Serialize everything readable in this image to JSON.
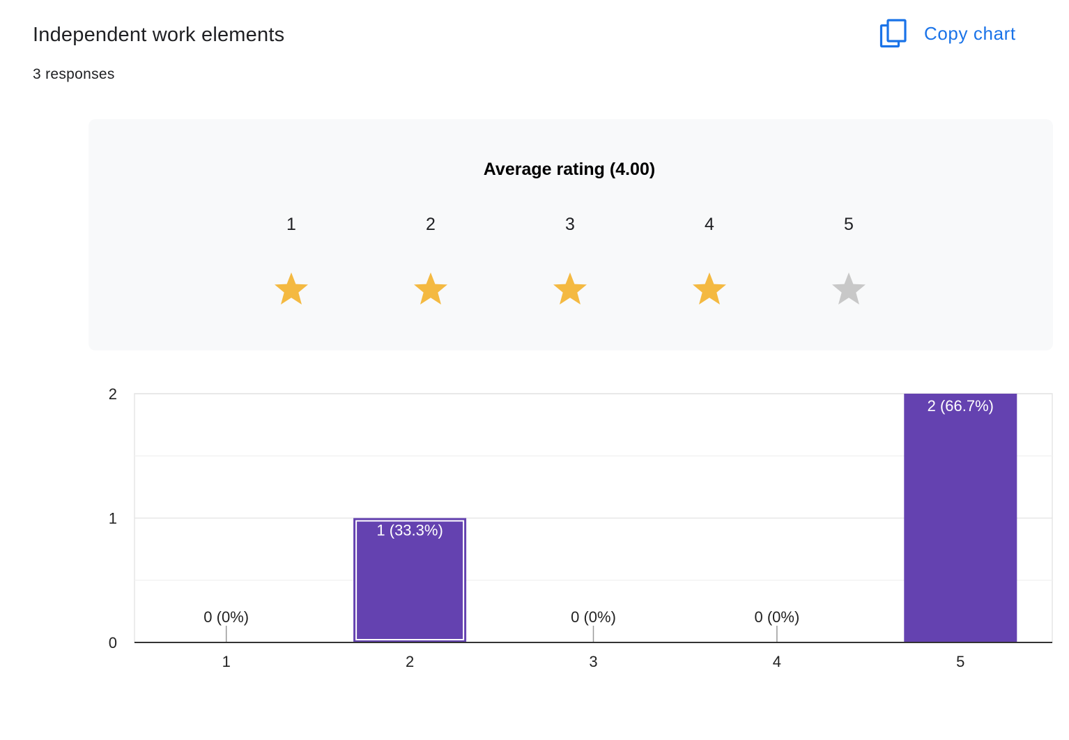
{
  "question": {
    "title": "Independent work elements",
    "responses": "3 responses"
  },
  "toolbar": {
    "copy_label": "Copy chart",
    "copy_icon": "copy-icon"
  },
  "rating": {
    "average_label": "Average rating (4.00)",
    "average": 4.0,
    "max": 5,
    "filled_color": "#f4b941",
    "empty_color": "#c8c8c8",
    "labels": [
      "1",
      "2",
      "3",
      "4",
      "5"
    ]
  },
  "colors": {
    "bar": "#6442b0",
    "accent": "#1a73e8",
    "panel": "#f8f9fa"
  },
  "chart_data": {
    "type": "bar",
    "categories": [
      "1",
      "2",
      "3",
      "4",
      "5"
    ],
    "values": [
      0,
      1,
      0,
      0,
      2
    ],
    "data_labels": [
      "0 (0%)",
      "1 (33.3%)",
      "0 (0%)",
      "0 (0%)",
      "2 (66.7%)"
    ],
    "yticks": [
      "0",
      "1",
      "2"
    ],
    "ylim": [
      0,
      2
    ],
    "grid": true,
    "legend": "none"
  }
}
